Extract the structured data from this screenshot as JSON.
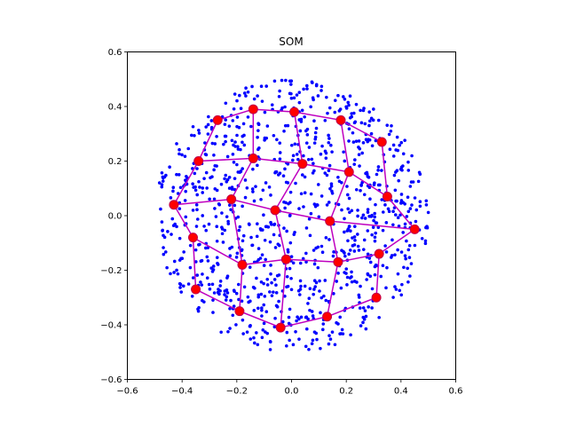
{
  "chart_data": {
    "type": "scatter",
    "title": "SOM",
    "xlabel": "",
    "ylabel": "",
    "xlim": [
      -0.6,
      0.6
    ],
    "ylim": [
      -0.6,
      0.6
    ],
    "xticks": [
      "−0.6",
      "−0.4",
      "−0.2",
      "0.0",
      "0.2",
      "0.4",
      "0.6"
    ],
    "yticks": [
      "−0.6",
      "−0.4",
      "−0.2",
      "0.0",
      "0.2",
      "0.4",
      "0.6"
    ],
    "grid": false,
    "colors": {
      "samples": "#0000ff",
      "nodes": "#ff0000",
      "node_edge": "#c0004a",
      "edges": "#bf00bf"
    },
    "samples": {
      "distribution": "uniform disk",
      "center": [
        0.0,
        0.0
      ],
      "radius": 0.5,
      "count": 1000
    },
    "som_grid": {
      "rows": 5,
      "cols": 5,
      "nodes": [
        [
          [
            -0.27,
            0.35
          ],
          [
            -0.14,
            0.39
          ],
          [
            0.01,
            0.38
          ],
          [
            0.18,
            0.35
          ],
          [
            0.33,
            0.27
          ]
        ],
        [
          [
            -0.34,
            0.2
          ],
          [
            -0.14,
            0.21
          ],
          [
            0.04,
            0.19
          ],
          [
            0.21,
            0.16
          ],
          [
            0.35,
            0.07
          ]
        ],
        [
          [
            -0.43,
            0.04
          ],
          [
            -0.22,
            0.06
          ],
          [
            -0.06,
            0.02
          ],
          [
            0.14,
            -0.02
          ],
          [
            0.45,
            -0.05
          ]
        ],
        [
          [
            -0.36,
            -0.08
          ],
          [
            -0.18,
            -0.18
          ],
          [
            -0.02,
            -0.16
          ],
          [
            0.17,
            -0.17
          ],
          [
            0.32,
            -0.14
          ]
        ],
        [
          [
            -0.35,
            -0.27
          ],
          [
            -0.19,
            -0.35
          ],
          [
            -0.04,
            -0.41
          ],
          [
            0.13,
            -0.37
          ],
          [
            0.31,
            -0.3
          ]
        ]
      ]
    }
  }
}
